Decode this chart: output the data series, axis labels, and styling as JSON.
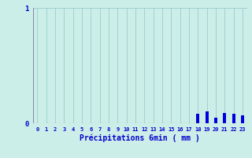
{
  "title": "",
  "xlabel": "Précipitations 6min ( mm )",
  "ylabel": "",
  "background_color": "#cceee8",
  "bar_color": "#0000dd",
  "grid_color": "#99cccc",
  "axis_color": "#8888aa",
  "text_color": "#0000cc",
  "xlim": [
    -0.5,
    23.5
  ],
  "ylim": [
    0,
    1.0
  ],
  "yticks": [
    0,
    1
  ],
  "xtick_labels": [
    "0",
    "1",
    "2",
    "3",
    "4",
    "5",
    "6",
    "7",
    "8",
    "9",
    "10",
    "11",
    "12",
    "13",
    "14",
    "15",
    "16",
    "17",
    "18",
    "19",
    "20",
    "21",
    "22",
    "23"
  ],
  "hours": [
    0,
    1,
    2,
    3,
    4,
    5,
    6,
    7,
    8,
    9,
    10,
    11,
    12,
    13,
    14,
    15,
    16,
    17,
    18,
    19,
    20,
    21,
    22,
    23
  ],
  "values": [
    0,
    0,
    0,
    0,
    0,
    0,
    0,
    0,
    0,
    0,
    0,
    0,
    0,
    0,
    0,
    0,
    0,
    0,
    0.08,
    0.1,
    0.05,
    0.09,
    0.08,
    0.07
  ],
  "figsize": [
    3.2,
    2.0
  ],
  "dpi": 100
}
